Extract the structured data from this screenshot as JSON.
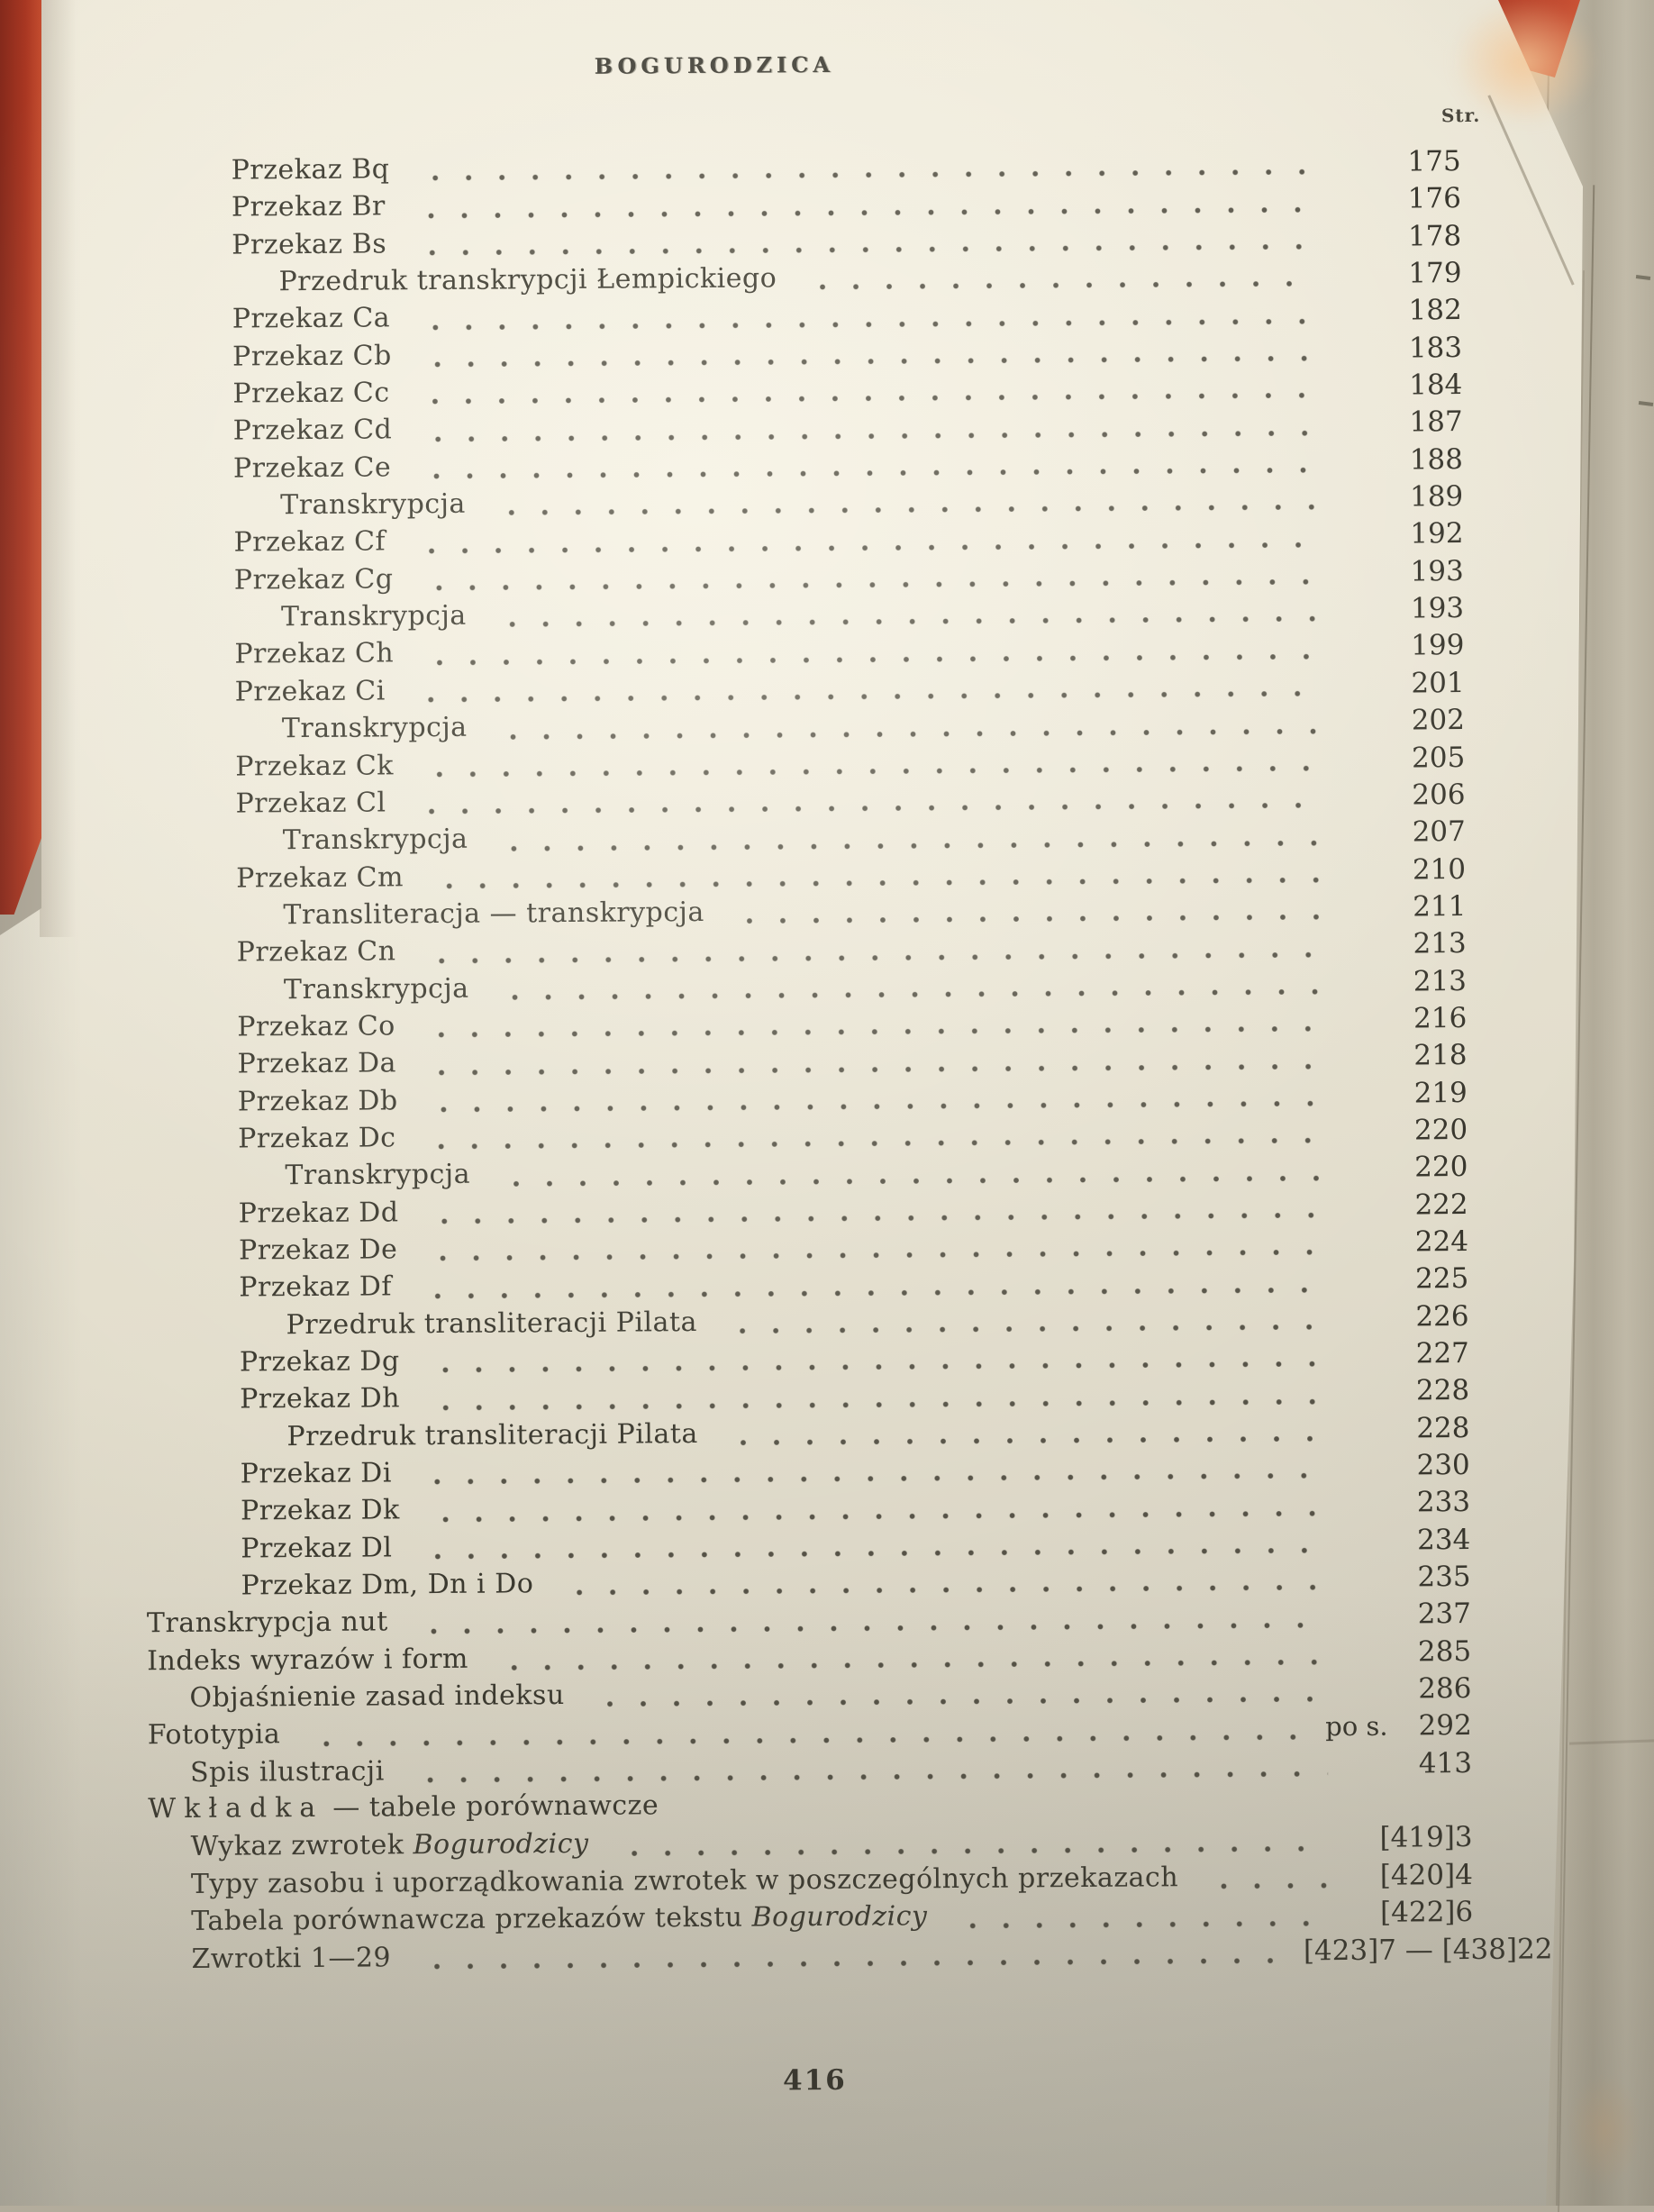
{
  "photo": {
    "cover_red": "#b23a24",
    "cover_red_dark": "#8f2c1d",
    "paper": "#e9e4d4",
    "ink": "#3b392f"
  },
  "page": {
    "running_head": "BOGURODZICA",
    "page_column_header": "Str.",
    "folio": "416"
  },
  "toc": {
    "entries": [
      {
        "indent": 2,
        "label": "Przekaz Bq",
        "page": "175"
      },
      {
        "indent": 2,
        "label": "Przekaz Br",
        "page": "176"
      },
      {
        "indent": 2,
        "label": "Przekaz Bs",
        "page": "178"
      },
      {
        "indent": 3,
        "label": "Przedruk transkrypcji Łempickiego",
        "page": "179"
      },
      {
        "indent": 2,
        "label": "Przekaz Ca",
        "page": "182"
      },
      {
        "indent": 2,
        "label": "Przekaz Cb",
        "page": "183"
      },
      {
        "indent": 2,
        "label": "Przekaz Cc",
        "page": "184"
      },
      {
        "indent": 2,
        "label": "Przekaz Cd",
        "page": "187"
      },
      {
        "indent": 2,
        "label": "Przekaz Ce",
        "page": "188"
      },
      {
        "indent": 3,
        "label": "Transkrypcja",
        "page": "189"
      },
      {
        "indent": 2,
        "label": "Przekaz Cf",
        "page": "192"
      },
      {
        "indent": 2,
        "label": "Przekaz Cg",
        "page": "193"
      },
      {
        "indent": 3,
        "label": "Transkrypcja",
        "page": "193"
      },
      {
        "indent": 2,
        "label": "Przekaz Ch",
        "page": "199"
      },
      {
        "indent": 2,
        "label": "Przekaz Ci",
        "page": "201"
      },
      {
        "indent": 3,
        "label": "Transkrypcja",
        "page": "202"
      },
      {
        "indent": 2,
        "label": "Przekaz Ck",
        "page": "205"
      },
      {
        "indent": 2,
        "label": "Przekaz Cl",
        "page": "206"
      },
      {
        "indent": 3,
        "label": "Transkrypcja",
        "page": "207"
      },
      {
        "indent": 2,
        "label": "Przekaz Cm",
        "page": "210"
      },
      {
        "indent": 3,
        "label": "Transliteracja — transkrypcja",
        "page": "211"
      },
      {
        "indent": 2,
        "label": "Przekaz Cn",
        "page": "213"
      },
      {
        "indent": 3,
        "label": "Transkrypcja",
        "page": "213"
      },
      {
        "indent": 2,
        "label": "Przekaz Co",
        "page": "216"
      },
      {
        "indent": 2,
        "label": "Przekaz Da",
        "page": "218"
      },
      {
        "indent": 2,
        "label": "Przekaz Db",
        "page": "219"
      },
      {
        "indent": 2,
        "label": "Przekaz Dc",
        "page": "220"
      },
      {
        "indent": 3,
        "label": "Transkrypcja",
        "page": "220"
      },
      {
        "indent": 2,
        "label": "Przekaz Dd",
        "page": "222"
      },
      {
        "indent": 2,
        "label": "Przekaz De",
        "page": "224"
      },
      {
        "indent": 2,
        "label": "Przekaz Df",
        "page": "225"
      },
      {
        "indent": 3,
        "label": "Przedruk transliteracji Pilata",
        "page": "226"
      },
      {
        "indent": 2,
        "label": "Przekaz Dg",
        "page": "227"
      },
      {
        "indent": 2,
        "label": "Przekaz Dh",
        "page": "228"
      },
      {
        "indent": 3,
        "label": "Przedruk transliteracji Pilata",
        "page": "228"
      },
      {
        "indent": 2,
        "label": "Przekaz Di",
        "page": "230"
      },
      {
        "indent": 2,
        "label": "Przekaz Dk",
        "page": "233"
      },
      {
        "indent": 2,
        "label": "Przekaz Dl",
        "page": "234"
      },
      {
        "indent": 2,
        "label": "Przekaz Dm, Dn i Do",
        "page": "235"
      },
      {
        "indent": 0,
        "label": "Transkrypcja nut",
        "page": "237"
      },
      {
        "indent": 0,
        "label": "Indeks wyrazów i form",
        "page": "285"
      },
      {
        "indent": 1,
        "label": "Objaśnienie zasad indeksu",
        "page": "286"
      },
      {
        "indent": 0,
        "label": "Fototypia",
        "prefix": "po s.",
        "page": "292"
      },
      {
        "indent": 1,
        "label": "Spis ilustracji",
        "page": "413"
      },
      {
        "indent": 0,
        "spaced": "Wkładka",
        "label": " — tabele porównawcze",
        "page": "",
        "leader": false
      },
      {
        "indent": 1,
        "label": "Wykaz zwrotek ",
        "italic": "Bogurodzicy",
        "page": "[419]3"
      },
      {
        "indent": 1,
        "label": "Typy zasobu i uporządkowania zwrotek w poszczególnych przekazach",
        "page": "[420]4"
      },
      {
        "indent": 1,
        "label": "Tabela porównawcza przekazów tekstu ",
        "italic": "Bogurodzicy",
        "page": "[422]6"
      },
      {
        "indent": 1,
        "label": "Zwrotki 1—29",
        "page": "[423]7 — [438]22",
        "wide": true
      }
    ]
  }
}
